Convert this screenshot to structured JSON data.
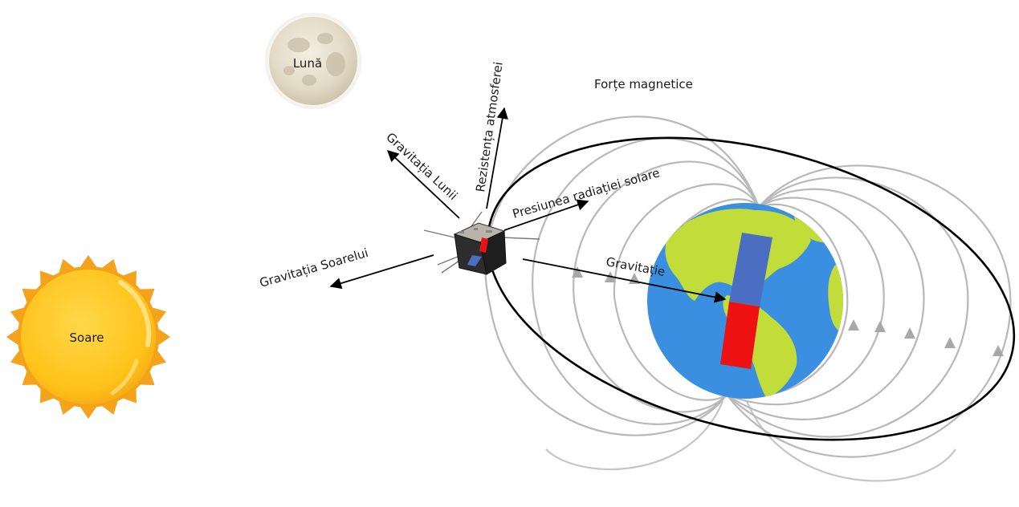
{
  "labels": {
    "moon": "Lună",
    "sun": "Soare",
    "magnetic_forces": "Forțe magnetice",
    "atmospheric_drag": "Rezistența atmosferei",
    "moon_gravity": "Gravitația Lunii",
    "solar_radiation_pressure": "Presiunea radiației solare",
    "sun_gravity": "Gravitația Soarelui",
    "gravity": "Gravitație"
  },
  "colors": {
    "sun_core": "#ffc21a",
    "sun_rays": "#f5a21c",
    "ocean": "#3b8fe0",
    "land": "#c2dc3a",
    "magnet_north": "#4a6fc2",
    "magnet_south": "#ee1111",
    "field_lines": "#b8b8b8",
    "orbit": "#000000"
  }
}
